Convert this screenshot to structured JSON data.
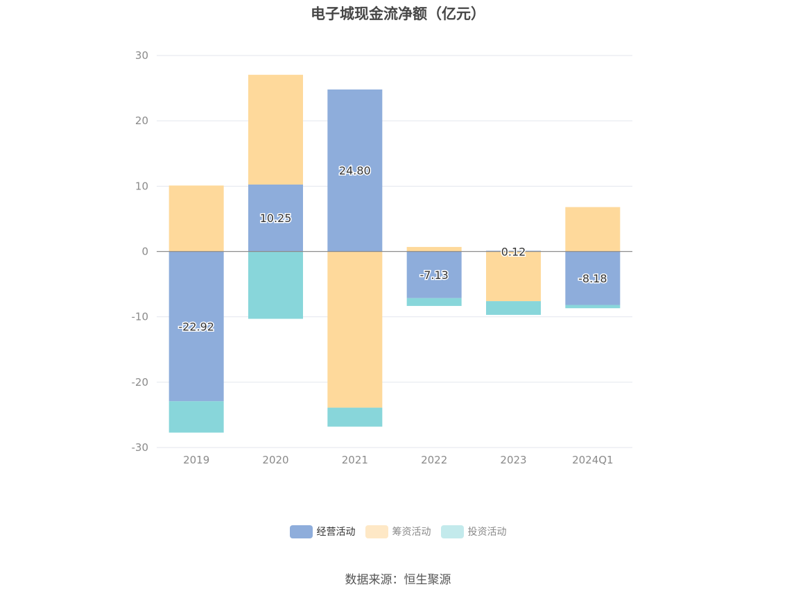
{
  "chart_data": {
    "type": "bar",
    "stacked": true,
    "title": "电子城现金流净额（亿元）",
    "categories": [
      "2019",
      "2020",
      "2021",
      "2022",
      "2023",
      "2024Q1"
    ],
    "series": [
      {
        "name": "经营活动",
        "color": "#8eaddb",
        "values": [
          -22.92,
          10.25,
          24.8,
          -7.13,
          0.12,
          -8.18
        ],
        "labels": [
          "-22.92",
          "10.25",
          "24.80",
          "-7.13",
          "0.12",
          "-8.18"
        ]
      },
      {
        "name": "筹资活动",
        "color": "#fed99b",
        "values": [
          10.1,
          16.8,
          -23.9,
          0.7,
          -7.6,
          6.8
        ]
      },
      {
        "name": "投资活动",
        "color": "#88d6da",
        "values": [
          -4.8,
          -10.3,
          -2.9,
          -1.2,
          -2.1,
          -0.5
        ]
      }
    ],
    "ylim": [
      -30,
      30
    ],
    "yticks": [
      30,
      20,
      10,
      0,
      -10,
      -20,
      -30
    ],
    "grid": true,
    "legend_position": "bottom"
  },
  "legend": {
    "items": [
      {
        "label": "经营活动",
        "color": "#8eaddb",
        "active": true
      },
      {
        "label": "筹资活动",
        "color": "#fee8c6",
        "active": false
      },
      {
        "label": "投资活动",
        "color": "#c3eaec",
        "active": false
      }
    ]
  },
  "source": "数据来源：恒生聚源"
}
